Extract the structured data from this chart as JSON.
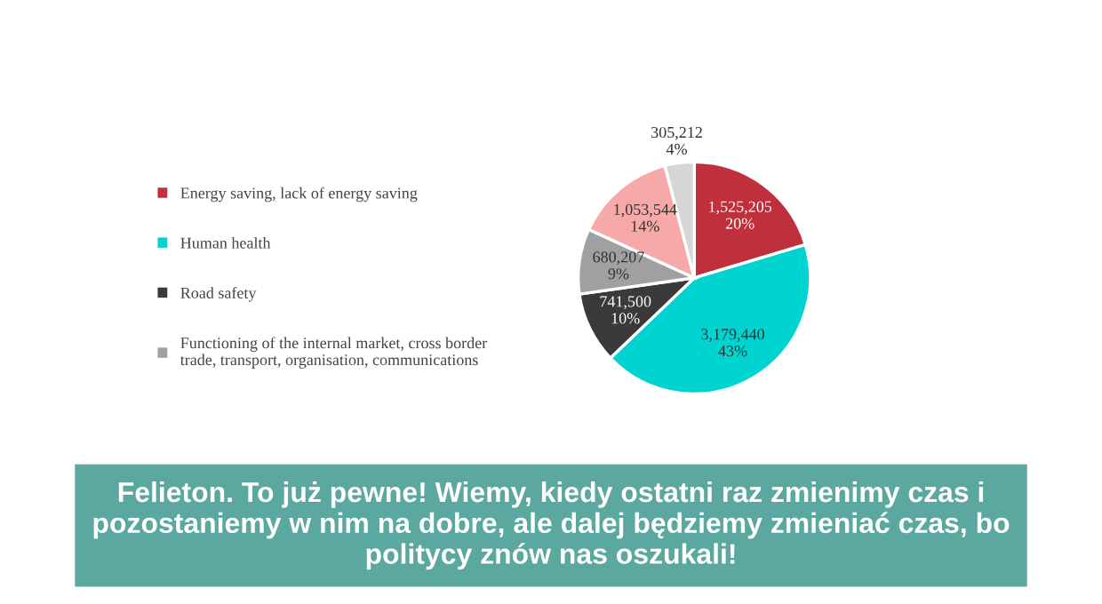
{
  "chart_data": {
    "type": "pie",
    "title": "Felieton. To już pewne! Wiemy, kiedy ostatni raz zmienimy czas i pozostaniemy w nim na dobre, ale dalej będziemy zmieniać czas, bo politycy znów nas oszukali!",
    "categories": [
      "Energy saving, lack of energy saving",
      "Human health",
      "Road safety",
      "Functioning of the internal market, cross border trade, transport, organisation, communications",
      null,
      null
    ],
    "values": [
      1525205,
      3179440,
      741500,
      680207,
      1053544,
      305212
    ],
    "value_labels": [
      "1,525,205\n20%",
      "3,179,440\n43%",
      "741,500\n10%",
      "680,207\n9%",
      "1,053,544\n14%",
      "305,212\n4%"
    ],
    "colors": [
      "#c0303c",
      "#00d4d0",
      "#3a3a3a",
      "#a0a0a0",
      "#f7a8a8",
      "#d6d6d6"
    ],
    "legend": "left"
  }
}
